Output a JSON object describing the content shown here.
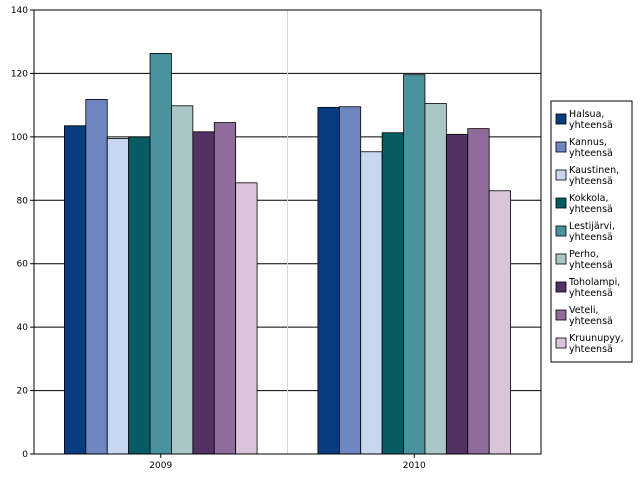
{
  "chart_data": {
    "type": "bar",
    "categories": [
      "2009",
      "2010"
    ],
    "series": [
      {
        "name": "Halsua, yhteensä",
        "values": [
          103.5,
          109.3
        ],
        "color": "#0a3c82"
      },
      {
        "name": "Kannus, yhteensä",
        "values": [
          111.8,
          109.5
        ],
        "color": "#6d86c0"
      },
      {
        "name": "Kaustinen, yhteensä",
        "values": [
          99.5,
          95.3
        ],
        "color": "#c8d7f1"
      },
      {
        "name": "Kokkola, yhteensä",
        "values": [
          100.0,
          101.3
        ],
        "color": "#065c62"
      },
      {
        "name": "Lestijärvi, yhteensä",
        "values": [
          126.3,
          119.6
        ],
        "color": "#4b929f"
      },
      {
        "name": "Perho, yhteensä",
        "values": [
          109.8,
          110.5
        ],
        "color": "#a9c7c6"
      },
      {
        "name": "Toholampi, yhteensä",
        "values": [
          101.6,
          100.8
        ],
        "color": "#533263"
      },
      {
        "name": "Veteli, yhteensä",
        "values": [
          104.5,
          102.6
        ],
        "color": "#8f6c9c"
      },
      {
        "name": "Kruunupyy, yhteensä",
        "values": [
          85.5,
          83.0
        ],
        "color": "#d9c4dc"
      }
    ],
    "title": "",
    "xlabel": "",
    "ylabel": "",
    "ylim": [
      0,
      140
    ],
    "yticks": [
      "0",
      "20",
      "40",
      "60",
      "80",
      "100",
      "120",
      "140"
    ],
    "grid": "horizontal",
    "legend": "right"
  }
}
